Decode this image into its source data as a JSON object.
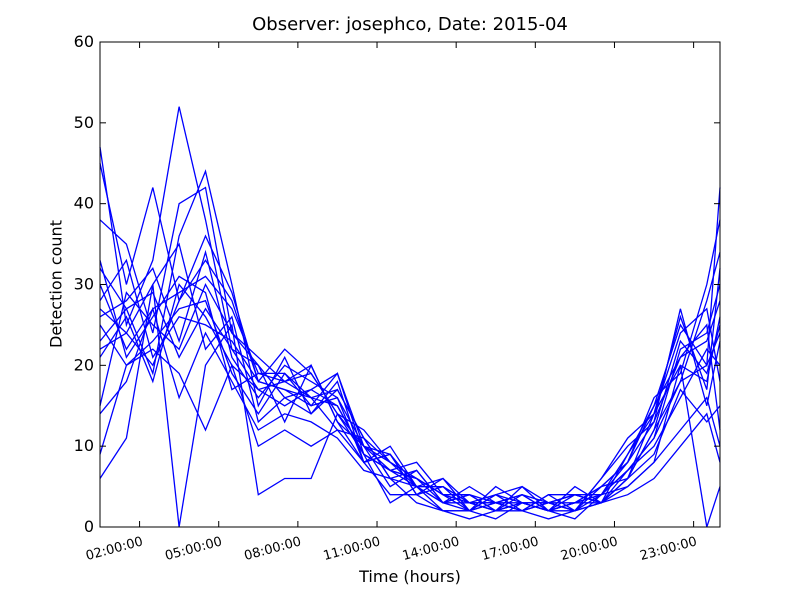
{
  "chart_data": {
    "type": "line",
    "title": "Observer: josephco, Date: 2015-04",
    "xlabel": "Time (hours)",
    "ylabel": "Detection count",
    "ylim": [
      0,
      60
    ],
    "xlim_hours": [
      0.5,
      24.0
    ],
    "xticks": [
      {
        "hour": 2,
        "label": "02:00:00"
      },
      {
        "hour": 5,
        "label": "05:00:00"
      },
      {
        "hour": 8,
        "label": "08:00:00"
      },
      {
        "hour": 11,
        "label": "11:00:00"
      },
      {
        "hour": 14,
        "label": "14:00:00"
      },
      {
        "hour": 17,
        "label": "17:00:00"
      },
      {
        "hour": 20,
        "label": "20:00:00"
      },
      {
        "hour": 23,
        "label": "23:00:00"
      }
    ],
    "yticks": [
      0,
      10,
      20,
      30,
      40,
      50,
      60
    ],
    "grid": false,
    "legend": false,
    "line_color": "#0000ff",
    "series": [
      {
        "x": [
          0.5,
          1.5,
          2.5,
          3.5,
          4.5,
          5.5,
          6.5,
          7.5,
          8.5,
          9.5,
          10.5,
          11.5,
          12.5,
          13.5,
          14.5,
          15.5,
          16.5,
          17.5,
          18.5,
          19.5,
          20.5,
          21.5,
          22.5,
          23.5,
          24.0
        ],
        "values": [
          47,
          25,
          33,
          52,
          38,
          22,
          17,
          18,
          16,
          15,
          9,
          7,
          5,
          3,
          2,
          4,
          3,
          2,
          3,
          5,
          8,
          15,
          25,
          20,
          42
        ]
      },
      {
        "x": [
          0.5,
          1.5,
          2.5,
          3.5,
          4.5,
          5.5,
          6.5,
          7.5,
          8.5,
          9.5,
          10.5,
          11.5,
          12.5,
          13.5,
          14.5,
          15.5,
          16.5,
          17.5,
          18.5,
          19.5,
          20.5,
          21.5,
          22.5,
          23.5,
          24.0
        ],
        "values": [
          45,
          30,
          42,
          28,
          36,
          29,
          18,
          22,
          19,
          14,
          12,
          8,
          6,
          4,
          3,
          2,
          5,
          3,
          4,
          3,
          6,
          12,
          18,
          28,
          34
        ]
      },
      {
        "x": [
          0.5,
          1.5,
          2.5,
          3.5,
          4.5,
          5.5,
          6.5,
          7.5,
          8.5,
          9.5,
          10.5,
          11.5,
          12.5,
          13.5,
          14.5,
          15.5,
          16.5,
          17.5,
          18.5,
          19.5,
          20.5,
          21.5,
          22.5,
          23.5,
          24.0
        ],
        "values": [
          38,
          35,
          24,
          40,
          42,
          24,
          20,
          16,
          17,
          19,
          10,
          9,
          4,
          5,
          2,
          3,
          2,
          4,
          2,
          4,
          7,
          11,
          22,
          24,
          30
        ]
      },
      {
        "x": [
          0.5,
          1.5,
          2.5,
          3.5,
          4.5,
          5.5,
          6.5,
          7.5,
          8.5,
          9.5,
          10.5,
          11.5,
          12.5,
          13.5,
          14.5,
          15.5,
          16.5,
          17.5,
          18.5,
          19.5,
          20.5,
          21.5,
          22.5,
          23.5,
          24.0
        ],
        "values": [
          32,
          27,
          19,
          36,
          44,
          30,
          15,
          21,
          14,
          17,
          11,
          6,
          7,
          3,
          4,
          2,
          3,
          2,
          5,
          3,
          9,
          14,
          20,
          18,
          26
        ]
      },
      {
        "x": [
          0.5,
          1.5,
          2.5,
          3.5,
          4.5,
          5.5,
          6.5,
          7.5,
          8.5,
          9.5,
          10.5,
          11.5,
          12.5,
          13.5,
          14.5,
          15.5,
          16.5,
          17.5,
          18.5,
          19.5,
          20.5,
          21.5,
          22.5,
          23.5,
          24.0
        ],
        "values": [
          30,
          22,
          27,
          29,
          31,
          27,
          19,
          18,
          20,
          13,
          8,
          10,
          5,
          6,
          3,
          3,
          4,
          3,
          2,
          6,
          10,
          13,
          27,
          15,
          23
        ]
      },
      {
        "x": [
          0.5,
          1.5,
          2.5,
          3.5,
          4.5,
          5.5,
          6.5,
          7.5,
          8.5,
          9.5,
          10.5,
          11.5,
          12.5,
          13.5,
          14.5,
          15.5,
          16.5,
          17.5,
          18.5,
          19.5,
          20.5,
          21.5,
          22.5,
          23.5,
          24.0
        ],
        "values": [
          28,
          33,
          21,
          26,
          25,
          23,
          18,
          17,
          15,
          19,
          9,
          7,
          8,
          4,
          2,
          5,
          3,
          2,
          3,
          4,
          8,
          16,
          19,
          30,
          38
        ]
      },
      {
        "x": [
          0.5,
          1.5,
          2.5,
          3.5,
          4.5,
          5.5,
          6.5,
          7.5,
          8.5,
          9.5,
          10.5,
          11.5,
          12.5,
          13.5,
          14.5,
          15.5,
          16.5,
          17.5,
          18.5,
          19.5,
          20.5,
          21.5,
          22.5,
          23.5,
          24.0
        ],
        "values": [
          26,
          28,
          32,
          23,
          34,
          21,
          16,
          20,
          18,
          16,
          10,
          8,
          6,
          3,
          5,
          3,
          2,
          4,
          4,
          3,
          7,
          10,
          16,
          22,
          20
        ]
      },
      {
        "x": [
          0.5,
          1.5,
          2.5,
          3.5,
          4.5,
          5.5,
          6.5,
          7.5,
          8.5,
          9.5,
          10.5,
          11.5,
          12.5,
          13.5,
          14.5,
          15.5,
          16.5,
          17.5,
          18.5,
          19.5,
          20.5,
          21.5,
          22.5,
          23.5,
          24.0
        ],
        "values": [
          25,
          20,
          23,
          27,
          28,
          19,
          14,
          19,
          16,
          12,
          11,
          6,
          5,
          5,
          3,
          2,
          3,
          3,
          2,
          5,
          6,
          12,
          23,
          19,
          25
        ]
      },
      {
        "x": [
          0.5,
          1.5,
          2.5,
          3.5,
          4.5,
          5.5,
          6.5,
          7.5,
          8.5,
          9.5,
          10.5,
          11.5,
          12.5,
          13.5,
          14.5,
          15.5,
          16.5,
          17.5,
          18.5,
          19.5,
          20.5,
          21.5,
          22.5,
          23.5,
          24.0
        ],
        "values": [
          22,
          24,
          30,
          35,
          22,
          26,
          13,
          16,
          14,
          18,
          8,
          9,
          4,
          6,
          2,
          4,
          5,
          2,
          3,
          4,
          9,
          15,
          21,
          25,
          12
        ]
      },
      {
        "x": [
          0.5,
          1.5,
          2.5,
          3.5,
          4.5,
          5.5,
          6.5,
          7.5,
          8.5,
          9.5,
          10.5,
          11.5,
          12.5,
          13.5,
          14.5,
          15.5,
          16.5,
          17.5,
          18.5,
          19.5,
          20.5,
          21.5,
          22.5,
          23.5,
          24.0
        ],
        "values": [
          21,
          26,
          18,
          30,
          26,
          20,
          17,
          15,
          17,
          15,
          9,
          7,
          6,
          4,
          4,
          3,
          2,
          3,
          4,
          3,
          6,
          9,
          17,
          13,
          15
        ]
      },
      {
        "x": [
          0.5,
          1.5,
          2.5,
          3.5,
          4.5,
          5.5,
          6.5,
          7.5,
          8.5,
          9.5,
          10.5,
          11.5,
          12.5,
          13.5,
          14.5,
          15.5,
          16.5,
          17.5,
          18.5,
          19.5,
          20.5,
          21.5,
          22.5,
          23.5,
          24.0
        ],
        "values": [
          15,
          29,
          25,
          22,
          30,
          24,
          21,
          18,
          19,
          14,
          10,
          5,
          7,
          3,
          3,
          2,
          4,
          2,
          2,
          6,
          11,
          14,
          24,
          27,
          18
        ]
      },
      {
        "x": [
          0.5,
          1.5,
          2.5,
          3.5,
          4.5,
          5.5,
          6.5,
          7.5,
          8.5,
          9.5,
          10.5,
          11.5,
          12.5,
          13.5,
          14.5,
          15.5,
          16.5,
          17.5,
          18.5,
          19.5,
          20.5,
          21.5,
          22.5,
          23.5,
          24.0
        ],
        "values": [
          14,
          18,
          27,
          16,
          24,
          18,
          12,
          14,
          13,
          11,
          7,
          6,
          3,
          2,
          2,
          3,
          3,
          2,
          3,
          3,
          5,
          8,
          12,
          16,
          10
        ]
      },
      {
        "x": [
          0.5,
          1.5,
          2.5,
          3.5,
          4.5,
          5.5,
          6.5,
          7.5,
          8.5,
          9.5,
          10.5,
          11.5,
          12.5,
          13.5,
          14.5,
          15.5,
          16.5,
          17.5,
          18.5,
          19.5,
          20.5,
          21.5,
          22.5,
          23.5,
          24.0
        ],
        "values": [
          9,
          20,
          22,
          19,
          12,
          20,
          10,
          12,
          10,
          12,
          8,
          4,
          4,
          2,
          1,
          2,
          2,
          1,
          2,
          3,
          4,
          6,
          10,
          14,
          8
        ]
      },
      {
        "x": [
          0.5,
          1.5,
          2.5,
          3.5,
          4.5,
          5.5,
          6.5,
          7.5,
          8.5,
          9.5,
          10.5,
          11.5,
          12.5,
          13.5,
          14.5,
          15.5,
          16.5,
          17.5,
          18.5,
          19.5,
          20.5,
          21.5,
          22.5,
          23.5,
          24.0
        ],
        "values": [
          6,
          11,
          30,
          0,
          20,
          25,
          4,
          6,
          6,
          14,
          9,
          3,
          5,
          2,
          2,
          1,
          3,
          2,
          1,
          4,
          5,
          8,
          20,
          0,
          5
        ]
      },
      {
        "x": [
          0.5,
          1.5,
          2.5,
          3.5,
          4.5,
          5.5,
          6.5,
          7.5,
          8.5,
          9.5,
          10.5,
          11.5,
          12.5,
          13.5,
          14.5,
          15.5,
          16.5,
          17.5,
          18.5,
          19.5,
          20.5,
          21.5,
          22.5,
          23.5,
          24.0
        ],
        "values": [
          27,
          24,
          20,
          28,
          33,
          28,
          18,
          17,
          16,
          17,
          11,
          8,
          5,
          5,
          3,
          4,
          2,
          3,
          3,
          5,
          8,
          13,
          21,
          23,
          28
        ]
      },
      {
        "x": [
          0.5,
          1.5,
          2.5,
          3.5,
          4.5,
          5.5,
          6.5,
          7.5,
          8.5,
          9.5,
          10.5,
          11.5,
          12.5,
          13.5,
          14.5,
          15.5,
          16.5,
          17.5,
          18.5,
          19.5,
          20.5,
          21.5,
          22.5,
          23.5,
          24.0
        ],
        "values": [
          23,
          27,
          29,
          21,
          27,
          22,
          20,
          13,
          20,
          13,
          10,
          7,
          6,
          4,
          3,
          3,
          4,
          2,
          4,
          4,
          7,
          11,
          18,
          20,
          24
        ]
      },
      {
        "x": [
          0.5,
          1.5,
          2.5,
          3.5,
          4.5,
          5.5,
          6.5,
          7.5,
          8.5,
          9.5,
          10.5,
          11.5,
          12.5,
          13.5,
          14.5,
          15.5,
          16.5,
          17.5,
          18.5,
          19.5,
          20.5,
          21.5,
          22.5,
          23.5,
          24.0
        ],
        "values": [
          33,
          21,
          26,
          31,
          29,
          17,
          19,
          19,
          15,
          16,
          8,
          9,
          5,
          3,
          4,
          2,
          3,
          3,
          2,
          3,
          6,
          14,
          26,
          17,
          32
        ]
      }
    ]
  }
}
